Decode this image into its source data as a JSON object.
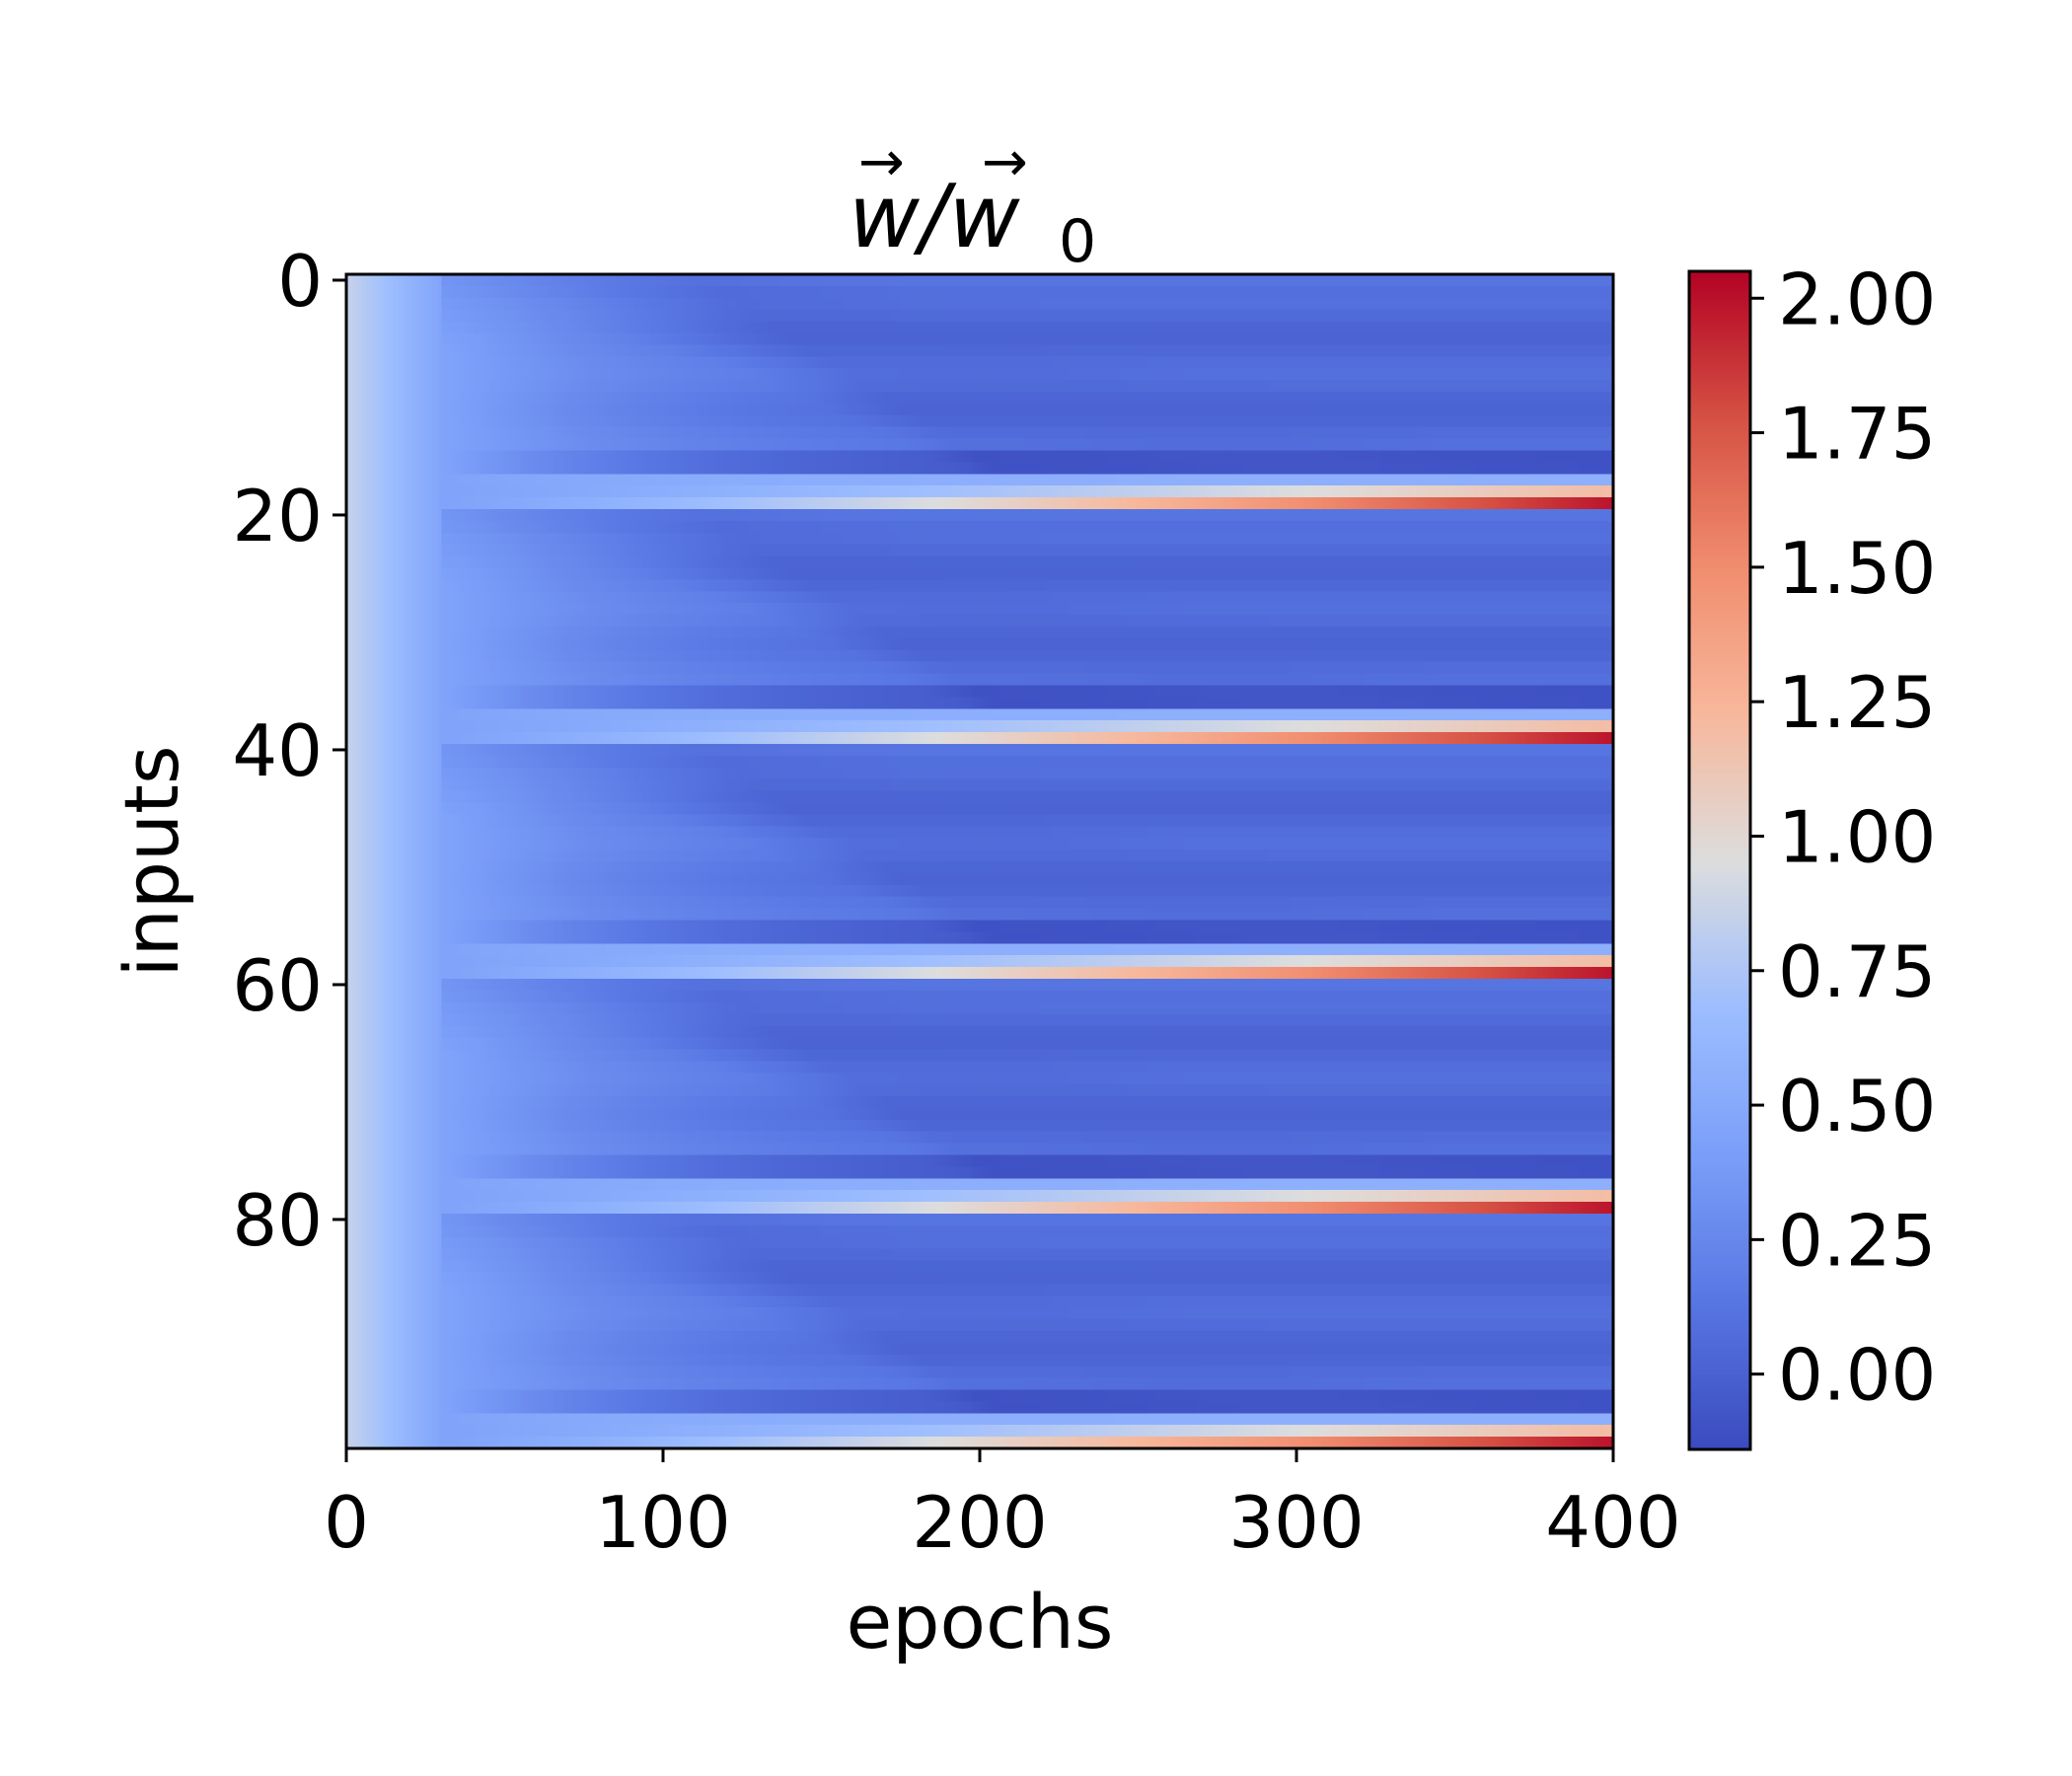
{
  "chart_data": {
    "type": "heatmap",
    "title": {
      "text": "w/w",
      "subscript": "0",
      "arrow_glyph": "→"
    },
    "xlabel": "epochs",
    "ylabel": "inputs",
    "xlim": [
      0,
      400
    ],
    "ylim": [
      0,
      99
    ],
    "x_ticks": [
      0,
      100,
      200,
      300,
      400
    ],
    "x_tick_labels": [
      "0",
      "100",
      "200",
      "300",
      "400"
    ],
    "y_ticks": [
      0,
      20,
      40,
      60,
      80
    ],
    "y_tick_labels": [
      "0",
      "20",
      "40",
      "60",
      "80"
    ],
    "y_inverted": true,
    "grid": false,
    "rows": 100,
    "epochs": 400,
    "block_size": 20,
    "colormap": "coolwarm",
    "colorbar": {
      "vmin": -0.14,
      "vmax": 2.05,
      "ticks": [
        0.0,
        0.25,
        0.5,
        0.75,
        1.0,
        1.25,
        1.5,
        1.75,
        2.0
      ],
      "tick_labels": [
        "0.00",
        "0.25",
        "0.50",
        "0.75",
        "1.00",
        "1.25",
        "1.50",
        "1.75",
        "2.00"
      ]
    },
    "pattern": {
      "initial_value": 0.85,
      "early_value_at_epoch_30": 0.45,
      "band_row_final_value": 2.0,
      "band_neighbor_final_value": 1.2,
      "bulk_final_value": 0.05,
      "dark_row_final_value": -0.1
    },
    "colors": {
      "low": "#3b4cc0",
      "mid": "#dddddd",
      "high": "#b40426"
    }
  }
}
